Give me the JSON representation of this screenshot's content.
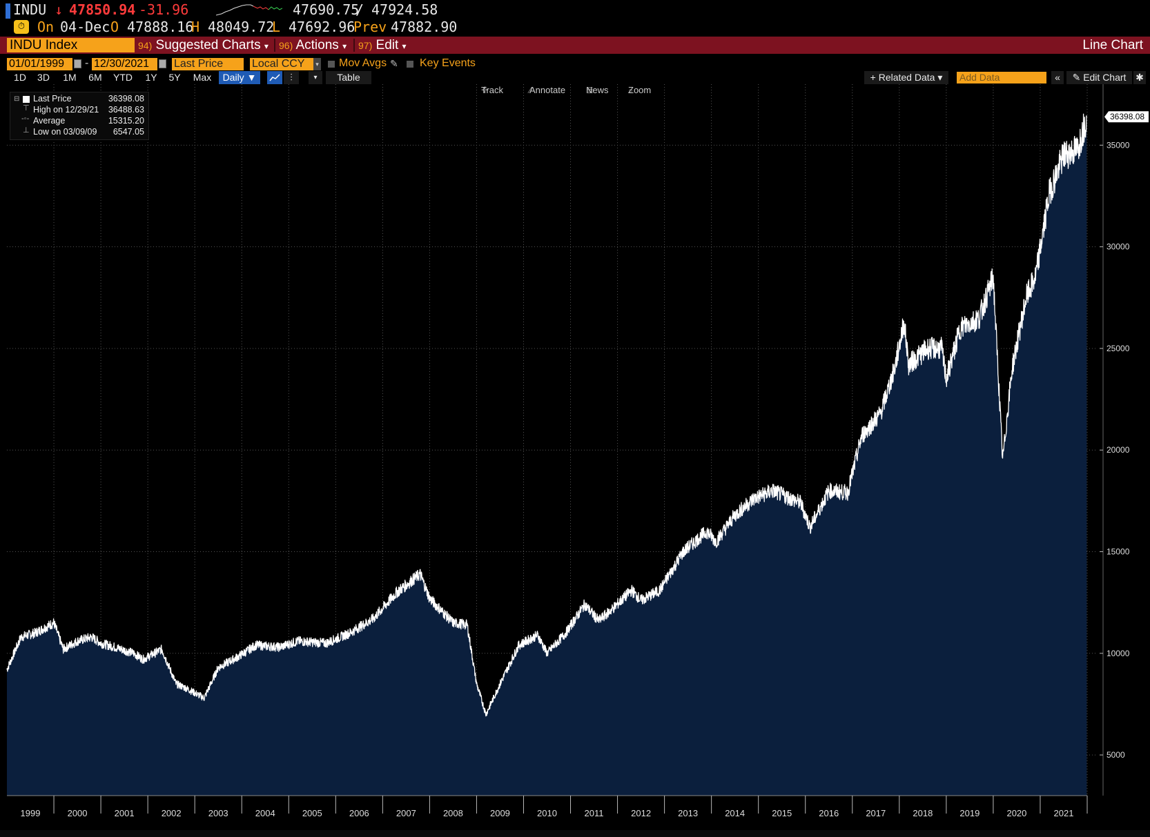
{
  "ticker": {
    "symbol": "INDU",
    "arrow": "↓",
    "last": "47850.94",
    "change": "-31.96",
    "range_low": "47690.75",
    "range_sep": "/",
    "range_high": "47924.58",
    "on_label": "On",
    "date": "04-Dec",
    "open_label": "O",
    "open": "47888.16",
    "high_label": "H",
    "high": "48049.72",
    "low_label": "L",
    "low": "47692.96",
    "prev_label": "Prev",
    "prev": "47882.90"
  },
  "toolbar": {
    "security": "INDU Index",
    "suggested_num": "94)",
    "suggested": "Suggested Charts",
    "actions_num": "96)",
    "actions": "Actions",
    "edit_num": "97)",
    "edit": "Edit",
    "chart_type": "Line Chart"
  },
  "settings": {
    "start_date": "01/01/1999",
    "dash": "-",
    "end_date": "12/30/2021",
    "field": "Last Price",
    "currency": "Local CCY",
    "mov_avgs": "Mov Avgs",
    "key_events": "Key Events"
  },
  "periods": [
    "1D",
    "3D",
    "1M",
    "6M",
    "YTD",
    "1Y",
    "5Y",
    "Max"
  ],
  "frequency": "Daily ▼",
  "table_label": "Table",
  "related_data": "+ Related Data ▾",
  "add_data_placeholder": "Add Data",
  "edit_chart": "Edit Chart",
  "tools": {
    "track": "Track",
    "annotate": "Annotate",
    "news": "News",
    "zoom": "Zoom"
  },
  "legend": {
    "last_label": "Last Price",
    "last_value": "36398.08",
    "high_label": "High on 12/29/21",
    "high_value": "36488.63",
    "avg_label": "Average",
    "avg_value": "15315.20",
    "low_label": "Low on 03/09/09",
    "low_value": "6547.05"
  },
  "colors": {
    "accent": "#f6a21a",
    "toolbar_red": "#7d1220",
    "area_fill": "#0b1f3d",
    "line": "#ffffff",
    "down": "#ff3b3b"
  },
  "chart_data": {
    "type": "area",
    "ylim": [
      3000,
      38000
    ],
    "yticks": [
      5000,
      10000,
      15000,
      20000,
      25000,
      30000,
      35000
    ],
    "years": [
      "1999",
      "2000",
      "2001",
      "2002",
      "2003",
      "2004",
      "2005",
      "2006",
      "2007",
      "2008",
      "2009",
      "2010",
      "2011",
      "2012",
      "2013",
      "2014",
      "2015",
      "2016",
      "2017",
      "2018",
      "2019",
      "2020",
      "2021"
    ],
    "last_value_label": "36398.08",
    "x": [
      1999.0,
      1999.3,
      1999.6,
      2000.0,
      2000.2,
      2000.5,
      2000.8,
      2001.0,
      2001.3,
      2001.7,
      2001.9,
      2002.3,
      2002.6,
      2002.8,
      2003.2,
      2003.5,
      2003.9,
      2004.3,
      2004.8,
      2005.2,
      2005.8,
      2006.3,
      2006.8,
      2007.3,
      2007.8,
      2008.0,
      2008.5,
      2008.8,
      2009.0,
      2009.2,
      2009.5,
      2009.9,
      2010.3,
      2010.5,
      2010.9,
      2011.3,
      2011.6,
      2011.9,
      2012.3,
      2012.5,
      2012.9,
      2013.4,
      2013.9,
      2014.1,
      2014.5,
      2014.9,
      2015.3,
      2015.6,
      2015.9,
      2016.1,
      2016.5,
      2016.9,
      2017.2,
      2017.6,
      2017.9,
      2018.1,
      2018.2,
      2018.6,
      2018.9,
      2019.0,
      2019.3,
      2019.7,
      2020.0,
      2020.2,
      2020.4,
      2020.7,
      2020.9,
      2021.2,
      2021.5,
      2021.8,
      2021.99
    ],
    "y": [
      9200,
      10800,
      11000,
      11500,
      10200,
      10600,
      10800,
      10500,
      10300,
      10000,
      9700,
      10200,
      8500,
      8300,
      7800,
      9300,
      9800,
      10400,
      10300,
      10600,
      10500,
      11000,
      11700,
      13000,
      13900,
      12700,
      11500,
      11400,
      8500,
      7000,
      8500,
      10400,
      10900,
      10000,
      11000,
      12400,
      11600,
      12200,
      13100,
      12600,
      13100,
      15000,
      16000,
      15500,
      16800,
      17600,
      18000,
      17700,
      17400,
      16200,
      18000,
      17900,
      20700,
      21800,
      24000,
      26300,
      24200,
      25000,
      25000,
      23500,
      26000,
      26500,
      28500,
      19500,
      24000,
      27500,
      28500,
      32700,
      34500,
      34800,
      36398
    ]
  }
}
